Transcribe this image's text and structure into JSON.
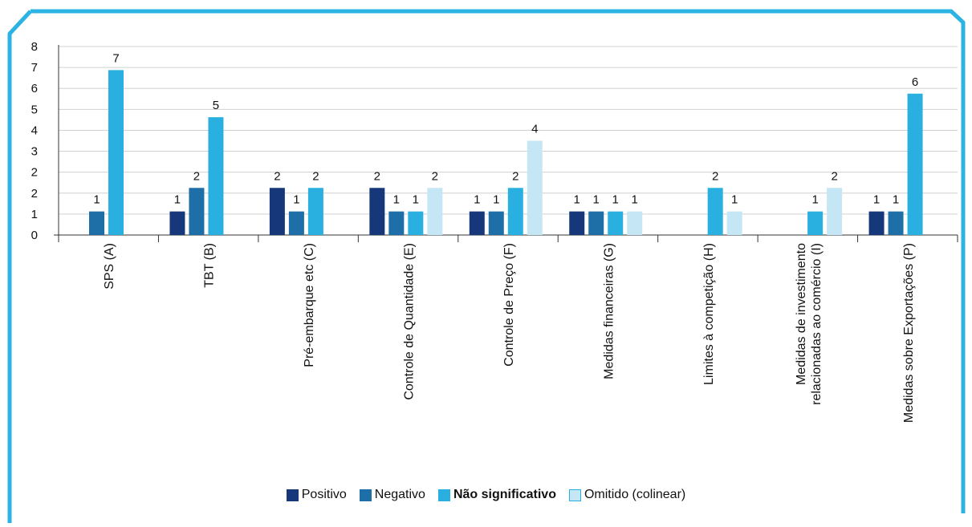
{
  "colors": {
    "frame": "#2bb3e3",
    "grid": "#d0d0d0",
    "axis": "#333333"
  },
  "chart_data": {
    "type": "bar",
    "title": "",
    "ylim": [
      0,
      8
    ],
    "yticks": [
      "0",
      "1",
      "2",
      "2",
      "3",
      "4",
      "5",
      "6",
      "7",
      "8"
    ],
    "grid": true,
    "legend_position": "bottom",
    "categories": [
      "SPS (A)",
      "TBT (B)",
      "Pré-embarque etc (C)",
      "Controle de Quantidade (E)",
      "Controle de Preço (F)",
      "Medidas financeiras (G)",
      "Limites à competição (H)",
      "Medidas de investimento relacionadas ao comércio (I)",
      "Medidas sobre Exportações (P)"
    ],
    "series": [
      {
        "name": "Positivo",
        "color": "#16387a",
        "values": [
          null,
          1,
          2,
          2,
          1,
          1,
          null,
          null,
          1
        ]
      },
      {
        "name": "Negativo",
        "color": "#1e6fa8",
        "values": [
          1,
          2,
          1,
          1,
          1,
          1,
          null,
          null,
          1
        ]
      },
      {
        "name": "Não significativo",
        "color": "#29b0e0",
        "values": [
          7,
          5,
          2,
          1,
          2,
          1,
          2,
          1,
          6
        ]
      },
      {
        "name": "Omitido (colinear)",
        "color": "#c5e6f4",
        "values": [
          null,
          null,
          null,
          2,
          4,
          1,
          1,
          2,
          null
        ]
      }
    ],
    "data_labels": [
      [
        "",
        "1",
        "2",
        "2",
        "1",
        "1",
        "",
        "",
        "1"
      ],
      [
        "1",
        "2",
        "1",
        "1",
        "1",
        "1",
        "",
        "",
        "1"
      ],
      [
        "7",
        "5",
        "2",
        "1",
        "2",
        "1",
        "2",
        "1",
        "6"
      ],
      [
        "",
        "",
        "",
        "2",
        "4",
        "1",
        "1",
        "2",
        ""
      ]
    ]
  }
}
